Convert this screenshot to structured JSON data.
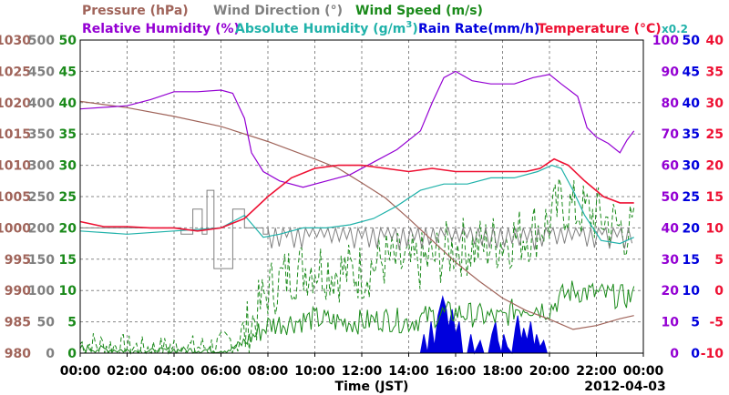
{
  "chart_data": {
    "type": "line",
    "legend": [
      {
        "key": "pressure",
        "label": "Pressure (hPa)",
        "color": "#a0645a"
      },
      {
        "key": "wind_dir",
        "label": "Wind Direction (°)",
        "color": "#808080"
      },
      {
        "key": "wind_speed",
        "label": "Wind Speed (m/s)",
        "color": "#1a8a1a"
      },
      {
        "key": "rel_hum",
        "label": "Relative Humidity (%)",
        "color": "#9400d3"
      },
      {
        "key": "abs_hum",
        "label_main": "Absolute Humidity (g/m",
        "label_sup": "3",
        "label_end": ")",
        "color": "#20b2aa"
      },
      {
        "key": "rain",
        "label": "Rain Rate(mm/h)",
        "color": "#0000dd"
      },
      {
        "key": "temp",
        "label": "Temperature (°C)",
        "color": "#ee1133"
      }
    ],
    "rain_scale_note": "x0.2",
    "xlabel": "Time (JST)",
    "date_label": "2012-04-03",
    "x_tick_labels": [
      "00:00",
      "02:00",
      "04:00",
      "06:00",
      "08:00",
      "10:00",
      "12:00",
      "14:00",
      "16:00",
      "18:00",
      "20:00",
      "22:00",
      "00:00"
    ],
    "xlim_hours": [
      0,
      24
    ],
    "axes": {
      "pressure": {
        "ticks": [
          "1030",
          "1025",
          "1020",
          "1015",
          "1010",
          "1005",
          "1000",
          "995",
          "990",
          "985",
          "980"
        ],
        "range": [
          980,
          1030
        ],
        "color": "#a0645a"
      },
      "wind_dir": {
        "ticks": [
          "500",
          "450",
          "400",
          "350",
          "300",
          "250",
          "200",
          "150",
          "100",
          "50",
          "0"
        ],
        "range": [
          0,
          500
        ],
        "color": "#808080"
      },
      "wind_speed": {
        "ticks": [
          "50",
          "45",
          "40",
          "35",
          "30",
          "25",
          "20",
          "15",
          "10",
          "5",
          "0"
        ],
        "range": [
          0,
          50
        ],
        "color": "#1a8a1a"
      },
      "rel_hum": {
        "ticks": [
          "100",
          "90",
          "80",
          "70",
          "60",
          "50",
          "40",
          "30",
          "20",
          "10",
          "0"
        ],
        "range": [
          0,
          100
        ],
        "color": "#9400d3"
      },
      "rain": {
        "ticks": [
          "50",
          "45",
          "40",
          "35",
          "30",
          "25",
          "20",
          "15",
          "10",
          "5",
          "0"
        ],
        "range": [
          0,
          50
        ],
        "color": "#0000dd"
      },
      "temp": {
        "ticks": [
          "40",
          "35",
          "30",
          "25",
          "20",
          "15",
          "10",
          "5",
          "0",
          "-5",
          "-10"
        ],
        "range": [
          -10,
          40
        ],
        "color": "#ee1133"
      }
    },
    "series": {
      "pressure": [
        [
          0,
          1020.2
        ],
        [
          2,
          1019.2
        ],
        [
          4,
          1017.8
        ],
        [
          6,
          1016.2
        ],
        [
          8,
          1013.8
        ],
        [
          10,
          1011.0
        ],
        [
          11,
          1009.5
        ],
        [
          12,
          1007.2
        ],
        [
          13,
          1004.8
        ],
        [
          14,
          1001.5
        ],
        [
          15,
          998.0
        ],
        [
          16,
          994.5
        ],
        [
          17,
          991.5
        ],
        [
          18,
          988.8
        ],
        [
          19,
          986.8
        ],
        [
          20,
          985.4
        ],
        [
          21,
          983.8
        ],
        [
          22,
          984.4
        ],
        [
          23,
          985.5
        ],
        [
          23.6,
          986.0
        ]
      ],
      "rel_hum": [
        [
          0,
          78
        ],
        [
          2,
          79
        ],
        [
          3,
          81
        ],
        [
          4,
          83.5
        ],
        [
          5,
          83.5
        ],
        [
          6,
          84
        ],
        [
          6.5,
          83
        ],
        [
          7,
          75
        ],
        [
          7.3,
          64
        ],
        [
          7.8,
          58
        ],
        [
          8.5,
          55
        ],
        [
          9.5,
          53
        ],
        [
          10.5,
          55
        ],
        [
          11.5,
          57
        ],
        [
          12.5,
          61
        ],
        [
          13.5,
          65
        ],
        [
          14.5,
          71
        ],
        [
          15.0,
          80
        ],
        [
          15.5,
          88
        ],
        [
          16.0,
          90
        ],
        [
          16.7,
          87
        ],
        [
          17.5,
          86
        ],
        [
          18.5,
          86
        ],
        [
          19.3,
          88
        ],
        [
          20.0,
          89
        ],
        [
          20.5,
          86
        ],
        [
          21.2,
          82
        ],
        [
          21.6,
          72
        ],
        [
          22.0,
          69
        ],
        [
          22.5,
          67
        ],
        [
          23.0,
          64
        ],
        [
          23.3,
          68
        ],
        [
          23.6,
          71
        ]
      ],
      "abs_hum": [
        [
          0,
          19.5
        ],
        [
          2,
          19
        ],
        [
          4,
          19.5
        ],
        [
          6,
          20
        ],
        [
          7,
          22
        ],
        [
          7.8,
          18.5
        ],
        [
          8.5,
          19
        ],
        [
          9.5,
          20
        ],
        [
          10.5,
          20
        ],
        [
          11.5,
          20.5
        ],
        [
          12.5,
          21.5
        ],
        [
          13.5,
          23.5
        ],
        [
          14.5,
          26
        ],
        [
          15.5,
          27
        ],
        [
          16.5,
          27
        ],
        [
          17.5,
          28
        ],
        [
          18.5,
          28
        ],
        [
          19.5,
          29
        ],
        [
          20.1,
          30
        ],
        [
          20.5,
          29.5
        ],
        [
          21.0,
          26
        ],
        [
          21.5,
          22
        ],
        [
          22.2,
          18
        ],
        [
          23.0,
          17.5
        ],
        [
          23.6,
          18.5
        ]
      ],
      "temp": [
        [
          0,
          11
        ],
        [
          1,
          10.2
        ],
        [
          2,
          10.2
        ],
        [
          3,
          10
        ],
        [
          4,
          10
        ],
        [
          5,
          9.5
        ],
        [
          6,
          10
        ],
        [
          7,
          11.5
        ],
        [
          8,
          15
        ],
        [
          9,
          18
        ],
        [
          10,
          19.5
        ],
        [
          11,
          20
        ],
        [
          12,
          20
        ],
        [
          13,
          19.5
        ],
        [
          14,
          19
        ],
        [
          15,
          19.5
        ],
        [
          16,
          19
        ],
        [
          17,
          19
        ],
        [
          18,
          19
        ],
        [
          19,
          19
        ],
        [
          19.6,
          19.5
        ],
        [
          20.2,
          21
        ],
        [
          20.8,
          20
        ],
        [
          21.5,
          17.5
        ],
        [
          22.3,
          15
        ],
        [
          23,
          14
        ],
        [
          23.6,
          14
        ]
      ],
      "wind_speed_mean": [
        [
          0,
          0.8
        ],
        [
          1,
          0.6
        ],
        [
          2,
          0.4
        ],
        [
          3,
          0.3
        ],
        [
          4,
          0.5
        ],
        [
          5,
          0.5
        ],
        [
          6,
          0.5
        ],
        [
          6.5,
          0.6
        ],
        [
          7,
          1.8
        ],
        [
          7.5,
          3
        ],
        [
          8,
          4.5
        ],
        [
          9,
          5
        ],
        [
          10,
          5.5
        ],
        [
          11,
          5
        ],
        [
          12,
          5
        ],
        [
          13,
          5.5
        ],
        [
          14,
          5
        ],
        [
          15,
          6
        ],
        [
          16,
          6.5
        ],
        [
          17,
          6
        ],
        [
          18,
          5.5
        ],
        [
          18.5,
          7
        ],
        [
          19,
          7.5
        ],
        [
          20,
          7
        ],
        [
          20.5,
          9
        ],
        [
          21,
          10
        ],
        [
          22,
          9.5
        ],
        [
          23,
          9
        ],
        [
          23.6,
          9
        ]
      ],
      "wind_speed_gust": [
        [
          0,
          1.5
        ],
        [
          1,
          1.2
        ],
        [
          2,
          1.0
        ],
        [
          3,
          0.8
        ],
        [
          4,
          1.0
        ],
        [
          5,
          1.0
        ],
        [
          6,
          1.2
        ],
        [
          7,
          3
        ],
        [
          7.5,
          6
        ],
        [
          8,
          10
        ],
        [
          9,
          13
        ],
        [
          10,
          14
        ],
        [
          11,
          13
        ],
        [
          12,
          13
        ],
        [
          13,
          15
        ],
        [
          14,
          14
        ],
        [
          15,
          15
        ],
        [
          16,
          17
        ],
        [
          17,
          17
        ],
        [
          18,
          18
        ],
        [
          19,
          19
        ],
        [
          20,
          21
        ],
        [
          20.5,
          24
        ],
        [
          21,
          23
        ],
        [
          22,
          22
        ],
        [
          23,
          20
        ],
        [
          23.6,
          19
        ]
      ],
      "wind_dir_steps": [
        [
          0,
          200
        ],
        [
          4.3,
          200
        ],
        [
          4.3,
          190
        ],
        [
          4.8,
          190
        ],
        [
          4.8,
          230
        ],
        [
          5.2,
          230
        ],
        [
          5.2,
          190
        ],
        [
          5.4,
          190
        ],
        [
          5.4,
          260
        ],
        [
          5.7,
          260
        ],
        [
          5.7,
          135
        ],
        [
          6.5,
          135
        ],
        [
          6.5,
          230
        ],
        [
          7.0,
          230
        ],
        [
          7.0,
          200
        ],
        [
          7.8,
          200
        ],
        [
          7.8,
          190
        ],
        [
          8.0,
          190
        ],
        [
          8.0,
          200
        ],
        [
          24,
          200
        ]
      ],
      "rain": [
        [
          14.5,
          0
        ],
        [
          14.65,
          3
        ],
        [
          14.8,
          0
        ],
        [
          14.95,
          5
        ],
        [
          15.1,
          1
        ],
        [
          15.25,
          6
        ],
        [
          15.45,
          9
        ],
        [
          15.6,
          7
        ],
        [
          15.7,
          4
        ],
        [
          15.85,
          7
        ],
        [
          16.0,
          3
        ],
        [
          16.15,
          5
        ],
        [
          16.3,
          0
        ],
        [
          16.5,
          0
        ],
        [
          16.65,
          3
        ],
        [
          16.8,
          0
        ],
        [
          17.05,
          2
        ],
        [
          17.2,
          0
        ],
        [
          17.4,
          0
        ],
        [
          17.55,
          3
        ],
        [
          17.7,
          5
        ],
        [
          17.8,
          2
        ],
        [
          17.95,
          0
        ],
        [
          18.05,
          3
        ],
        [
          18.2,
          1
        ],
        [
          18.4,
          0
        ],
        [
          18.55,
          4
        ],
        [
          18.65,
          6
        ],
        [
          18.8,
          2
        ],
        [
          18.9,
          4
        ],
        [
          19.05,
          2
        ],
        [
          19.2,
          5
        ],
        [
          19.35,
          1
        ],
        [
          19.45,
          3
        ],
        [
          19.6,
          1
        ],
        [
          19.75,
          2
        ],
        [
          19.9,
          0
        ]
      ]
    }
  }
}
